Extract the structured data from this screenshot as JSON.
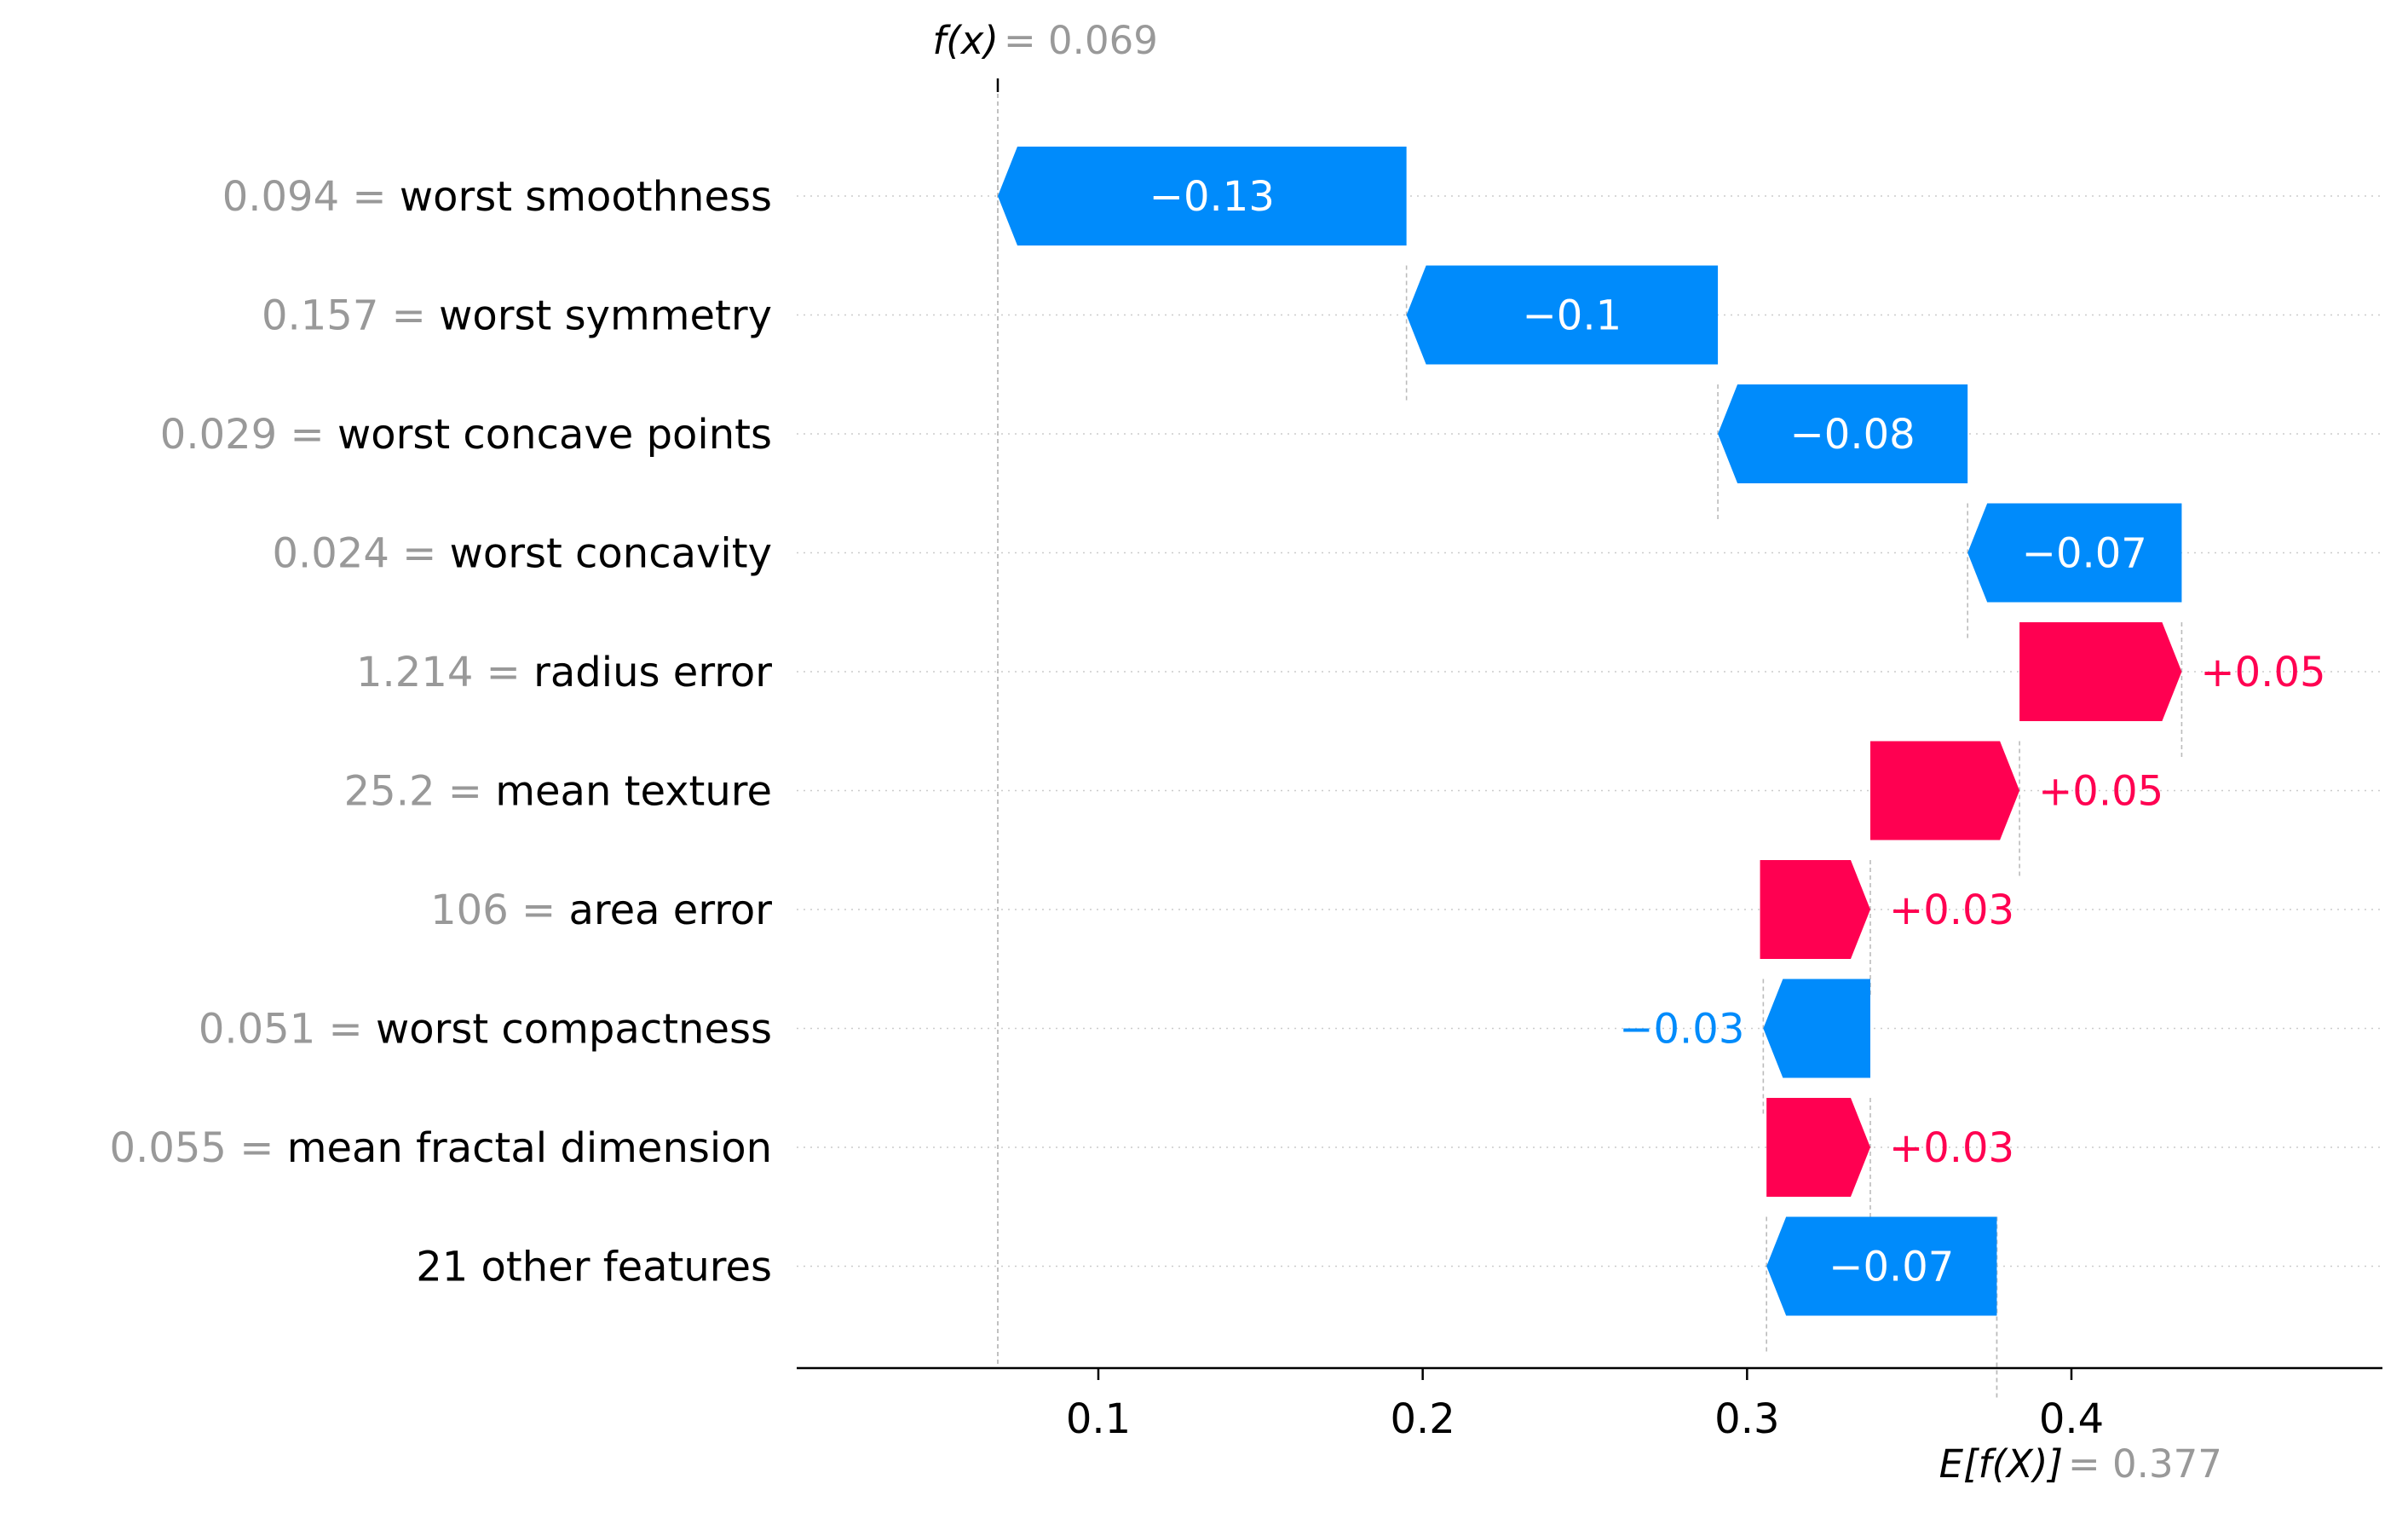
{
  "colors": {
    "positive": "#ff0051",
    "negative": "#008bfb",
    "value_gray": "#999999",
    "text": "#000000",
    "guide": "#bbbbbb",
    "grid": "#cccccc"
  },
  "chart_data": {
    "type": "waterfall",
    "fx_label": "f(x)",
    "fx_value": "= 0.069",
    "ex_label": "E[f(X)]",
    "ex_value": "= 0.377",
    "f_x": 0.069,
    "e_fx": 0.377,
    "xlim": [
      0.01,
      0.498
    ],
    "x_ticks": [
      {
        "value": 0.1,
        "label": "0.1"
      },
      {
        "value": 0.2,
        "label": "0.2"
      },
      {
        "value": 0.3,
        "label": "0.3"
      },
      {
        "value": 0.4,
        "label": "0.4"
      }
    ],
    "features": [
      {
        "value_text": "0.094 =",
        "name": "worst smoothness",
        "start": 0.195,
        "end": 0.069,
        "label": "−0.13"
      },
      {
        "value_text": "0.157 =",
        "name": "worst symmetry",
        "start": 0.291,
        "end": 0.195,
        "label": "−0.1"
      },
      {
        "value_text": "0.029 =",
        "name": "worst concave points",
        "start": 0.368,
        "end": 0.291,
        "label": "−0.08"
      },
      {
        "value_text": "0.024 =",
        "name": "worst concavity",
        "start": 0.434,
        "end": 0.368,
        "label": "−0.07"
      },
      {
        "value_text": "1.214 =",
        "name": "radius error",
        "start": 0.384,
        "end": 0.434,
        "label": "+0.05"
      },
      {
        "value_text": "25.2 =",
        "name": "mean texture",
        "start": 0.338,
        "end": 0.384,
        "label": "+0.05"
      },
      {
        "value_text": "106 =",
        "name": "area error",
        "start": 0.304,
        "end": 0.338,
        "label": "+0.03"
      },
      {
        "value_text": "0.051 =",
        "name": "worst compactness",
        "start": 0.338,
        "end": 0.305,
        "label": "−0.03"
      },
      {
        "value_text": "0.055 =",
        "name": "mean fractal dimension",
        "start": 0.306,
        "end": 0.338,
        "label": "+0.03"
      },
      {
        "value_text": "",
        "name": "21 other features",
        "start": 0.377,
        "end": 0.306,
        "label": "−0.07"
      }
    ]
  }
}
